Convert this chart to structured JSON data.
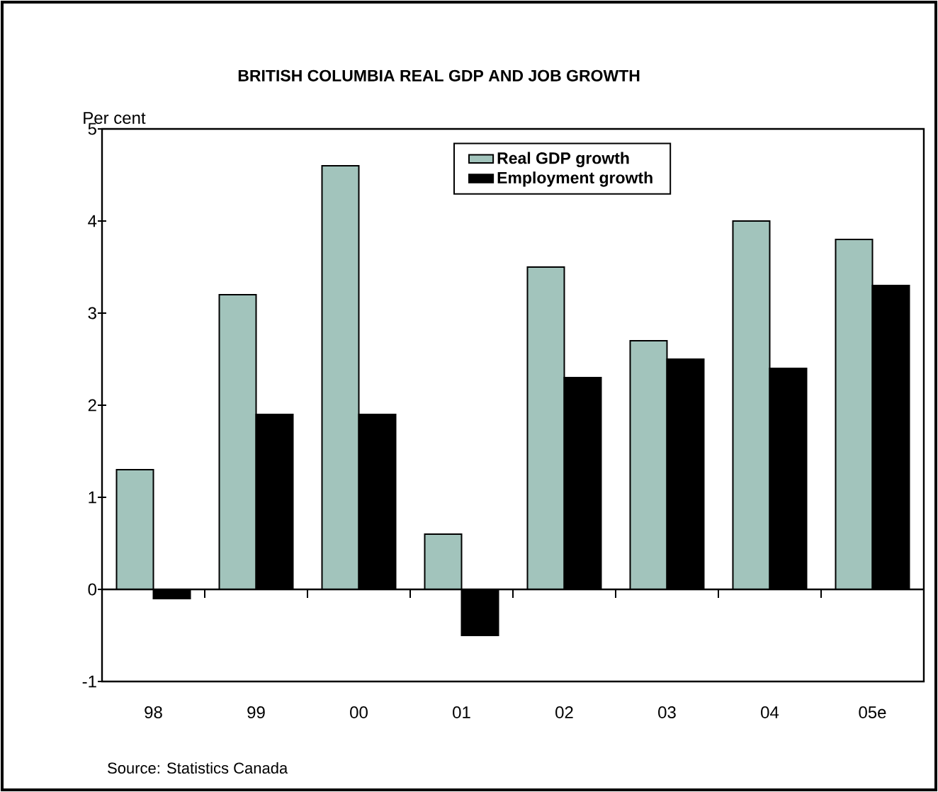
{
  "chart_data": {
    "type": "bar",
    "title": "BRITISH COLUMBIA REAL GDP AND JOB GROWTH",
    "ylabel": "Per cent",
    "categories": [
      "98",
      "99",
      "00",
      "01",
      "02",
      "03",
      "04",
      "05e"
    ],
    "series": [
      {
        "name": "Real GDP growth",
        "color": "#a2c4bc",
        "values": [
          1.3,
          3.2,
          4.6,
          0.6,
          3.5,
          2.7,
          4.0,
          3.8
        ]
      },
      {
        "name": "Employment growth",
        "color": "#000000",
        "values": [
          -0.1,
          1.9,
          1.9,
          -0.5,
          2.3,
          2.5,
          2.4,
          3.3
        ]
      }
    ],
    "ylim": [
      -1,
      5
    ],
    "yticks": [
      -1,
      0,
      1,
      2,
      3,
      4,
      5
    ],
    "legend": "top",
    "annotations": [
      "Source:  Statistics Canada"
    ]
  }
}
